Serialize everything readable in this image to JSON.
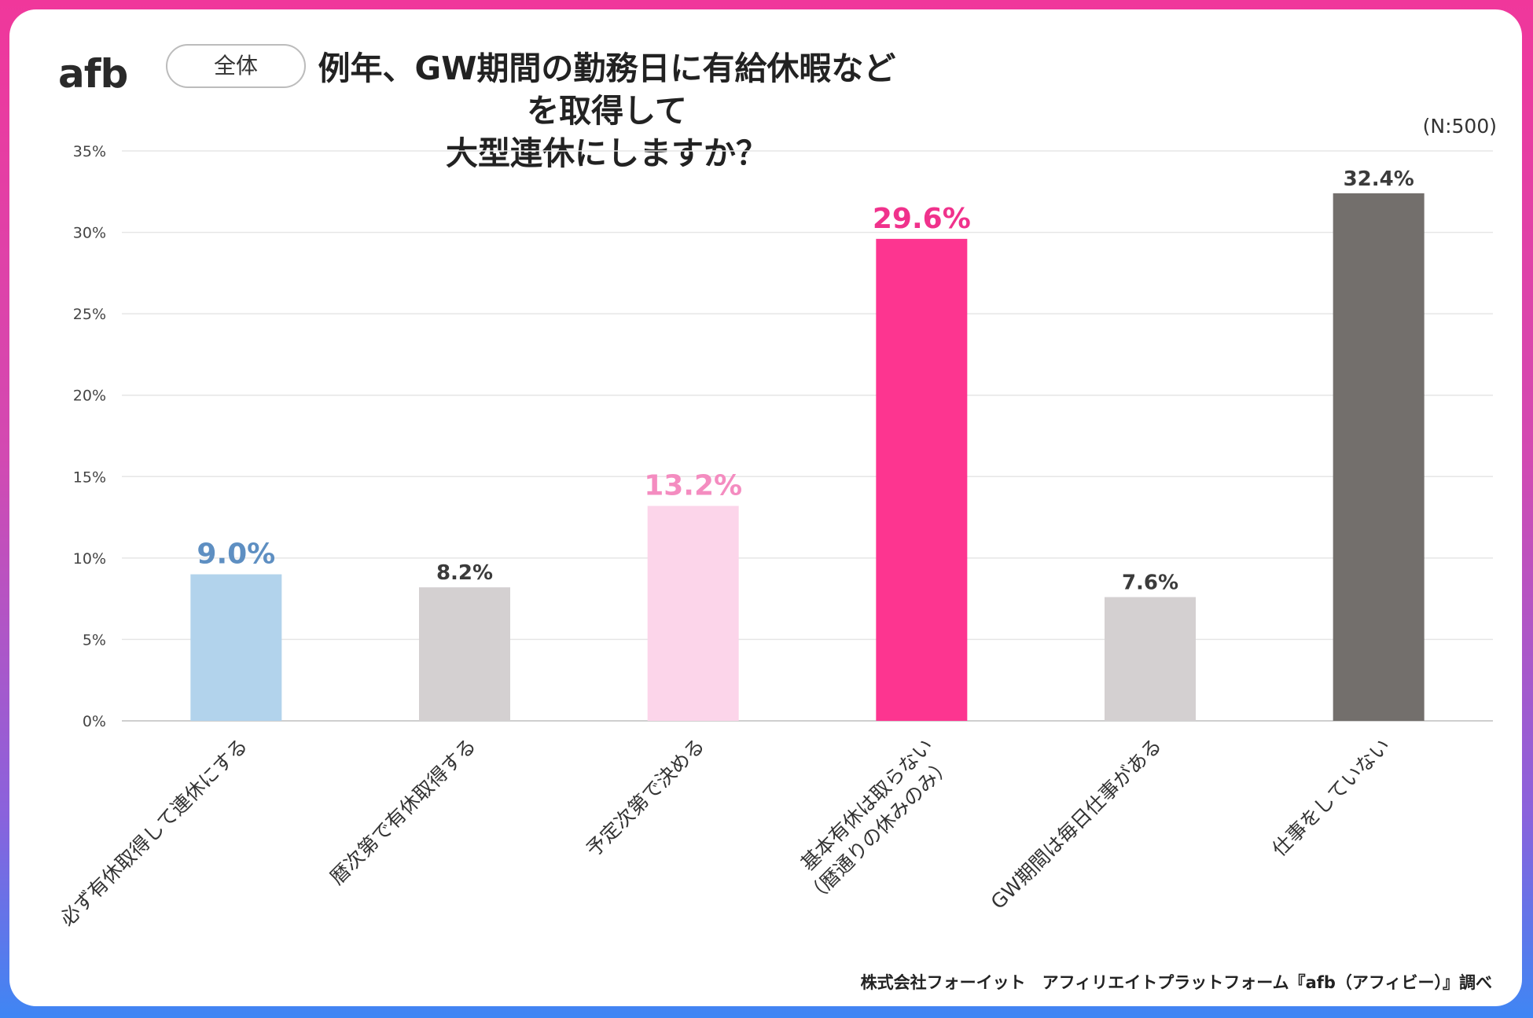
{
  "header": {
    "logo_text": "afb",
    "segment_label": "全体",
    "title_line1": "例年、GW期間の勤務日に有給休暇などを取得して",
    "title_line2": "大型連休にしますか？",
    "sample_size": "(N:500)"
  },
  "footer": {
    "source": "株式会社フォーイット　アフィリエイトプラットフォーム『afb（アフィビー）』調べ"
  },
  "chart_data": {
    "type": "bar",
    "title": "例年、GW期間の勤務日に有給休暇などを取得して大型連休にしますか？",
    "categories": [
      [
        "必ず有休取得して連休にする"
      ],
      [
        "暦次第で有休取得する"
      ],
      [
        "予定次第で決める"
      ],
      [
        "基本有休は取らない",
        "（暦通りの休みのみ）"
      ],
      [
        "GW期間は毎日仕事がある"
      ],
      [
        "仕事をしていない"
      ]
    ],
    "values": [
      9.0,
      8.2,
      13.2,
      29.6,
      7.6,
      32.4
    ],
    "value_labels": [
      "9.0%",
      "8.2%",
      "13.2%",
      "29.6%",
      "7.6%",
      "32.4%"
    ],
    "bar_colors": [
      "#b2d3ec",
      "#d4d0d1",
      "#fcd5ea",
      "#fd3590",
      "#d4d0d1",
      "#736f6c"
    ],
    "label_colors": [
      "#5e8fc2",
      "#3b3b3b",
      "#f48cc0",
      "#f0328c",
      "#3b3b3b",
      "#3b3b3b"
    ],
    "y_ticks": [
      "0%",
      "5%",
      "10%",
      "15%",
      "20%",
      "25%",
      "30%",
      "35%"
    ],
    "ylim": [
      0,
      35
    ],
    "ytick_step": 5,
    "grid": true,
    "legend": "none",
    "xlabel": "",
    "ylabel": ""
  }
}
